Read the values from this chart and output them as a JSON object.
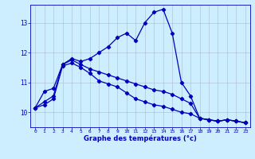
{
  "title": "Graphe des températures (°c)",
  "background_color": "#cceeff",
  "grid_color": "#aabbcc",
  "line_color": "#0000bb",
  "marker": "D",
  "markersize": 2.2,
  "linewidth": 0.9,
  "xlim": [
    -0.5,
    23.5
  ],
  "ylim": [
    9.5,
    13.6
  ],
  "yticks": [
    10,
    11,
    12,
    13
  ],
  "xticks": [
    0,
    1,
    2,
    3,
    4,
    5,
    6,
    7,
    8,
    9,
    10,
    11,
    12,
    13,
    14,
    15,
    16,
    17,
    18,
    19,
    20,
    21,
    22,
    23
  ],
  "series1_x": [
    0,
    1,
    2,
    3,
    4,
    5,
    6,
    7,
    8,
    9,
    10,
    11,
    12,
    13,
    14,
    15,
    16,
    17,
    18,
    19,
    20,
    21,
    22,
    23
  ],
  "series1_y": [
    10.15,
    10.7,
    10.8,
    11.6,
    11.8,
    11.7,
    11.8,
    12.0,
    12.2,
    12.5,
    12.65,
    12.4,
    13.0,
    13.35,
    13.45,
    12.65,
    11.0,
    10.55,
    9.8,
    9.75,
    9.7,
    9.75,
    9.7,
    9.65
  ],
  "series2_x": [
    0,
    1,
    2,
    3,
    4,
    5,
    6,
    7,
    8,
    9,
    10,
    11,
    12,
    13,
    14,
    15,
    16,
    17,
    18,
    19,
    20,
    21,
    22,
    23
  ],
  "series2_y": [
    10.15,
    10.35,
    10.55,
    11.6,
    11.75,
    11.6,
    11.45,
    11.35,
    11.25,
    11.15,
    11.05,
    10.95,
    10.85,
    10.75,
    10.7,
    10.6,
    10.45,
    10.3,
    9.8,
    9.75,
    9.7,
    9.75,
    9.7,
    9.65
  ],
  "series3_x": [
    0,
    1,
    2,
    3,
    4,
    5,
    6,
    7,
    8,
    9,
    10,
    11,
    12,
    13,
    14,
    15,
    16,
    17,
    18,
    19,
    20,
    21,
    22,
    23
  ],
  "series3_y": [
    10.15,
    10.25,
    10.45,
    11.55,
    11.65,
    11.5,
    11.3,
    11.05,
    10.95,
    10.85,
    10.65,
    10.45,
    10.35,
    10.25,
    10.2,
    10.1,
    10.0,
    9.95,
    9.8,
    9.75,
    9.7,
    9.75,
    9.7,
    9.65
  ]
}
